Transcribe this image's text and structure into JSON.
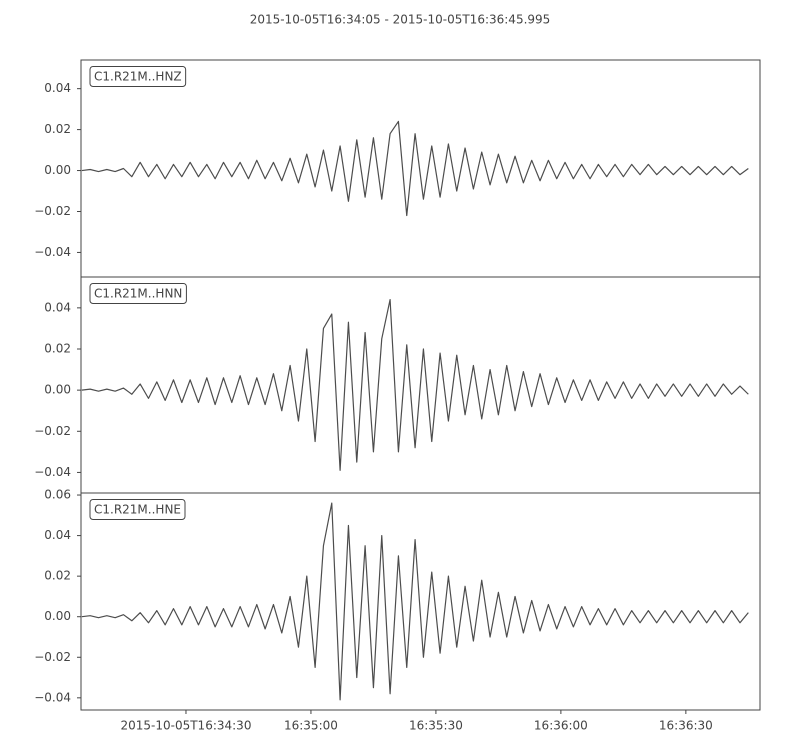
{
  "chart_data": {
    "type": "line",
    "title": "2015-10-05T16:34:05  -  2015-10-05T16:36:45.995",
    "color": "#4d4d4d",
    "x": [
      "2015-10-05T16:34:05",
      "2015-10-05T16:34:07",
      "2015-10-05T16:34:09",
      "2015-10-05T16:34:11",
      "2015-10-05T16:34:13",
      "2015-10-05T16:34:15",
      "2015-10-05T16:34:17",
      "2015-10-05T16:34:19",
      "2015-10-05T16:34:21",
      "2015-10-05T16:34:23",
      "2015-10-05T16:34:25",
      "2015-10-05T16:34:27",
      "2015-10-05T16:34:29",
      "2015-10-05T16:34:31",
      "2015-10-05T16:34:33",
      "2015-10-05T16:34:35",
      "2015-10-05T16:34:37",
      "2015-10-05T16:34:39",
      "2015-10-05T16:34:41",
      "2015-10-05T16:34:43",
      "2015-10-05T16:34:45",
      "2015-10-05T16:34:47",
      "2015-10-05T16:34:49",
      "2015-10-05T16:34:51",
      "2015-10-05T16:34:53",
      "2015-10-05T16:34:55",
      "2015-10-05T16:34:57",
      "2015-10-05T16:34:59",
      "2015-10-05T16:35:01",
      "2015-10-05T16:35:03",
      "2015-10-05T16:35:05",
      "2015-10-05T16:35:07",
      "2015-10-05T16:35:09",
      "2015-10-05T16:35:11",
      "2015-10-05T16:35:13",
      "2015-10-05T16:35:15",
      "2015-10-05T16:35:17",
      "2015-10-05T16:35:19",
      "2015-10-05T16:35:21",
      "2015-10-05T16:35:23",
      "2015-10-05T16:35:25",
      "2015-10-05T16:35:27",
      "2015-10-05T16:35:29",
      "2015-10-05T16:35:31",
      "2015-10-05T16:35:33",
      "2015-10-05T16:35:35",
      "2015-10-05T16:35:37",
      "2015-10-05T16:35:39",
      "2015-10-05T16:35:41",
      "2015-10-05T16:35:43",
      "2015-10-05T16:35:45",
      "2015-10-05T16:35:47",
      "2015-10-05T16:35:49",
      "2015-10-05T16:35:51",
      "2015-10-05T16:35:53",
      "2015-10-05T16:35:55",
      "2015-10-05T16:35:57",
      "2015-10-05T16:35:59",
      "2015-10-05T16:36:01",
      "2015-10-05T16:36:03",
      "2015-10-05T16:36:05",
      "2015-10-05T16:36:07",
      "2015-10-05T16:36:09",
      "2015-10-05T16:36:11",
      "2015-10-05T16:36:13",
      "2015-10-05T16:36:15",
      "2015-10-05T16:36:17",
      "2015-10-05T16:36:19",
      "2015-10-05T16:36:21",
      "2015-10-05T16:36:23",
      "2015-10-05T16:36:25",
      "2015-10-05T16:36:27",
      "2015-10-05T16:36:29",
      "2015-10-05T16:36:31",
      "2015-10-05T16:36:33",
      "2015-10-05T16:36:35",
      "2015-10-05T16:36:37",
      "2015-10-05T16:36:39",
      "2015-10-05T16:36:41",
      "2015-10-05T16:36:43",
      "2015-10-05T16:36:45"
    ],
    "xlim": [
      "2015-10-05T16:34:04.8",
      "2015-10-05T16:36:47.8"
    ],
    "xticks": [
      "2015-10-05T16:34:30",
      {
        "value": "2015-10-05T16:35:00",
        "label": "16:35:00"
      },
      {
        "value": "2015-10-05T16:35:30",
        "label": "16:35:30"
      },
      {
        "value": "2015-10-05T16:36:00",
        "label": "16:36:00"
      },
      {
        "value": "2015-10-05T16:36:30",
        "label": "16:36:30"
      }
    ],
    "series": [
      {
        "name": "C1.R21M..HNZ",
        "ylim": [
          -0.052,
          0.054
        ],
        "yticks": [
          {
            "value": -0.04,
            "label": "−0.04"
          },
          {
            "value": -0.02,
            "label": "−0.02"
          },
          {
            "value": 0,
            "label": "0.00"
          },
          0.02,
          0.04
        ],
        "values": [
          0,
          0.0005,
          -0.0005,
          0.0005,
          -0.0005,
          0.001,
          -0.003,
          0.004,
          -0.003,
          0.003,
          -0.004,
          0.003,
          -0.003,
          0.004,
          -0.003,
          0.003,
          -0.004,
          0.004,
          -0.003,
          0.004,
          -0.004,
          0.005,
          -0.004,
          0.004,
          -0.005,
          0.006,
          -0.006,
          0.008,
          -0.008,
          0.01,
          -0.01,
          0.012,
          -0.015,
          0.015,
          -0.013,
          0.016,
          -0.014,
          0.018,
          0.024,
          -0.022,
          0.018,
          -0.014,
          0.012,
          -0.013,
          0.013,
          -0.01,
          0.011,
          -0.009,
          0.009,
          -0.007,
          0.008,
          -0.006,
          0.007,
          -0.006,
          0.005,
          -0.005,
          0.005,
          -0.004,
          0.004,
          -0.004,
          0.003,
          -0.004,
          0.003,
          -0.003,
          0.003,
          -0.003,
          0.003,
          -0.002,
          0.003,
          -0.002,
          0.002,
          -0.002,
          0.002,
          -0.002,
          0.002,
          -0.002,
          0.002,
          -0.002,
          0.002,
          -0.002,
          0.001
        ]
      },
      {
        "name": "C1.R21M..HNN",
        "ylim": [
          -0.05,
          0.055
        ],
        "yticks": [
          {
            "value": -0.04,
            "label": "−0.04"
          },
          {
            "value": -0.02,
            "label": "−0.02"
          },
          {
            "value": 0,
            "label": "0.00"
          },
          0.02,
          0.04
        ],
        "values": [
          0,
          0.0005,
          -0.0005,
          0.0005,
          -0.0005,
          0.001,
          -0.002,
          0.003,
          -0.004,
          0.004,
          -0.005,
          0.005,
          -0.006,
          0.005,
          -0.006,
          0.006,
          -0.007,
          0.006,
          -0.006,
          0.007,
          -0.007,
          0.006,
          -0.007,
          0.008,
          -0.01,
          0.012,
          -0.015,
          0.02,
          -0.025,
          0.03,
          0.037,
          -0.039,
          0.033,
          -0.035,
          0.028,
          -0.03,
          0.025,
          0.044,
          -0.03,
          0.022,
          -0.028,
          0.02,
          -0.025,
          0.018,
          -0.015,
          0.017,
          -0.012,
          0.012,
          -0.014,
          0.01,
          -0.012,
          0.012,
          -0.01,
          0.009,
          -0.008,
          0.008,
          -0.007,
          0.006,
          -0.006,
          0.005,
          -0.005,
          0.005,
          -0.005,
          0.004,
          -0.004,
          0.004,
          -0.004,
          0.003,
          -0.004,
          0.003,
          -0.003,
          0.003,
          -0.003,
          0.003,
          -0.003,
          0.003,
          -0.003,
          0.003,
          -0.002,
          0.002,
          -0.002
        ]
      },
      {
        "name": "C1.R21M..HNE",
        "ylim": [
          -0.046,
          0.061
        ],
        "yticks": [
          {
            "value": -0.04,
            "label": "−0.04"
          },
          {
            "value": -0.02,
            "label": "−0.02"
          },
          {
            "value": 0,
            "label": "0.00"
          },
          0.02,
          0.04,
          0.06
        ],
        "values": [
          0,
          0.0005,
          -0.0005,
          0.0005,
          -0.0005,
          0.001,
          -0.002,
          0.002,
          -0.003,
          0.003,
          -0.004,
          0.004,
          -0.004,
          0.005,
          -0.004,
          0.005,
          -0.005,
          0.004,
          -0.005,
          0.005,
          -0.005,
          0.006,
          -0.006,
          0.006,
          -0.008,
          0.01,
          -0.015,
          0.02,
          -0.025,
          0.035,
          0.056,
          -0.041,
          0.045,
          -0.03,
          0.035,
          -0.035,
          0.04,
          -0.038,
          0.03,
          -0.025,
          0.038,
          -0.02,
          0.022,
          -0.018,
          0.02,
          -0.015,
          0.015,
          -0.012,
          0.018,
          -0.01,
          0.012,
          -0.01,
          0.01,
          -0.008,
          0.008,
          -0.007,
          0.006,
          -0.006,
          0.005,
          -0.005,
          0.005,
          -0.004,
          0.004,
          -0.004,
          0.004,
          -0.004,
          0.003,
          -0.003,
          0.003,
          -0.003,
          0.003,
          -0.003,
          0.003,
          -0.003,
          0.003,
          -0.003,
          0.003,
          -0.003,
          0.003,
          -0.003,
          0.002
        ]
      }
    ]
  }
}
